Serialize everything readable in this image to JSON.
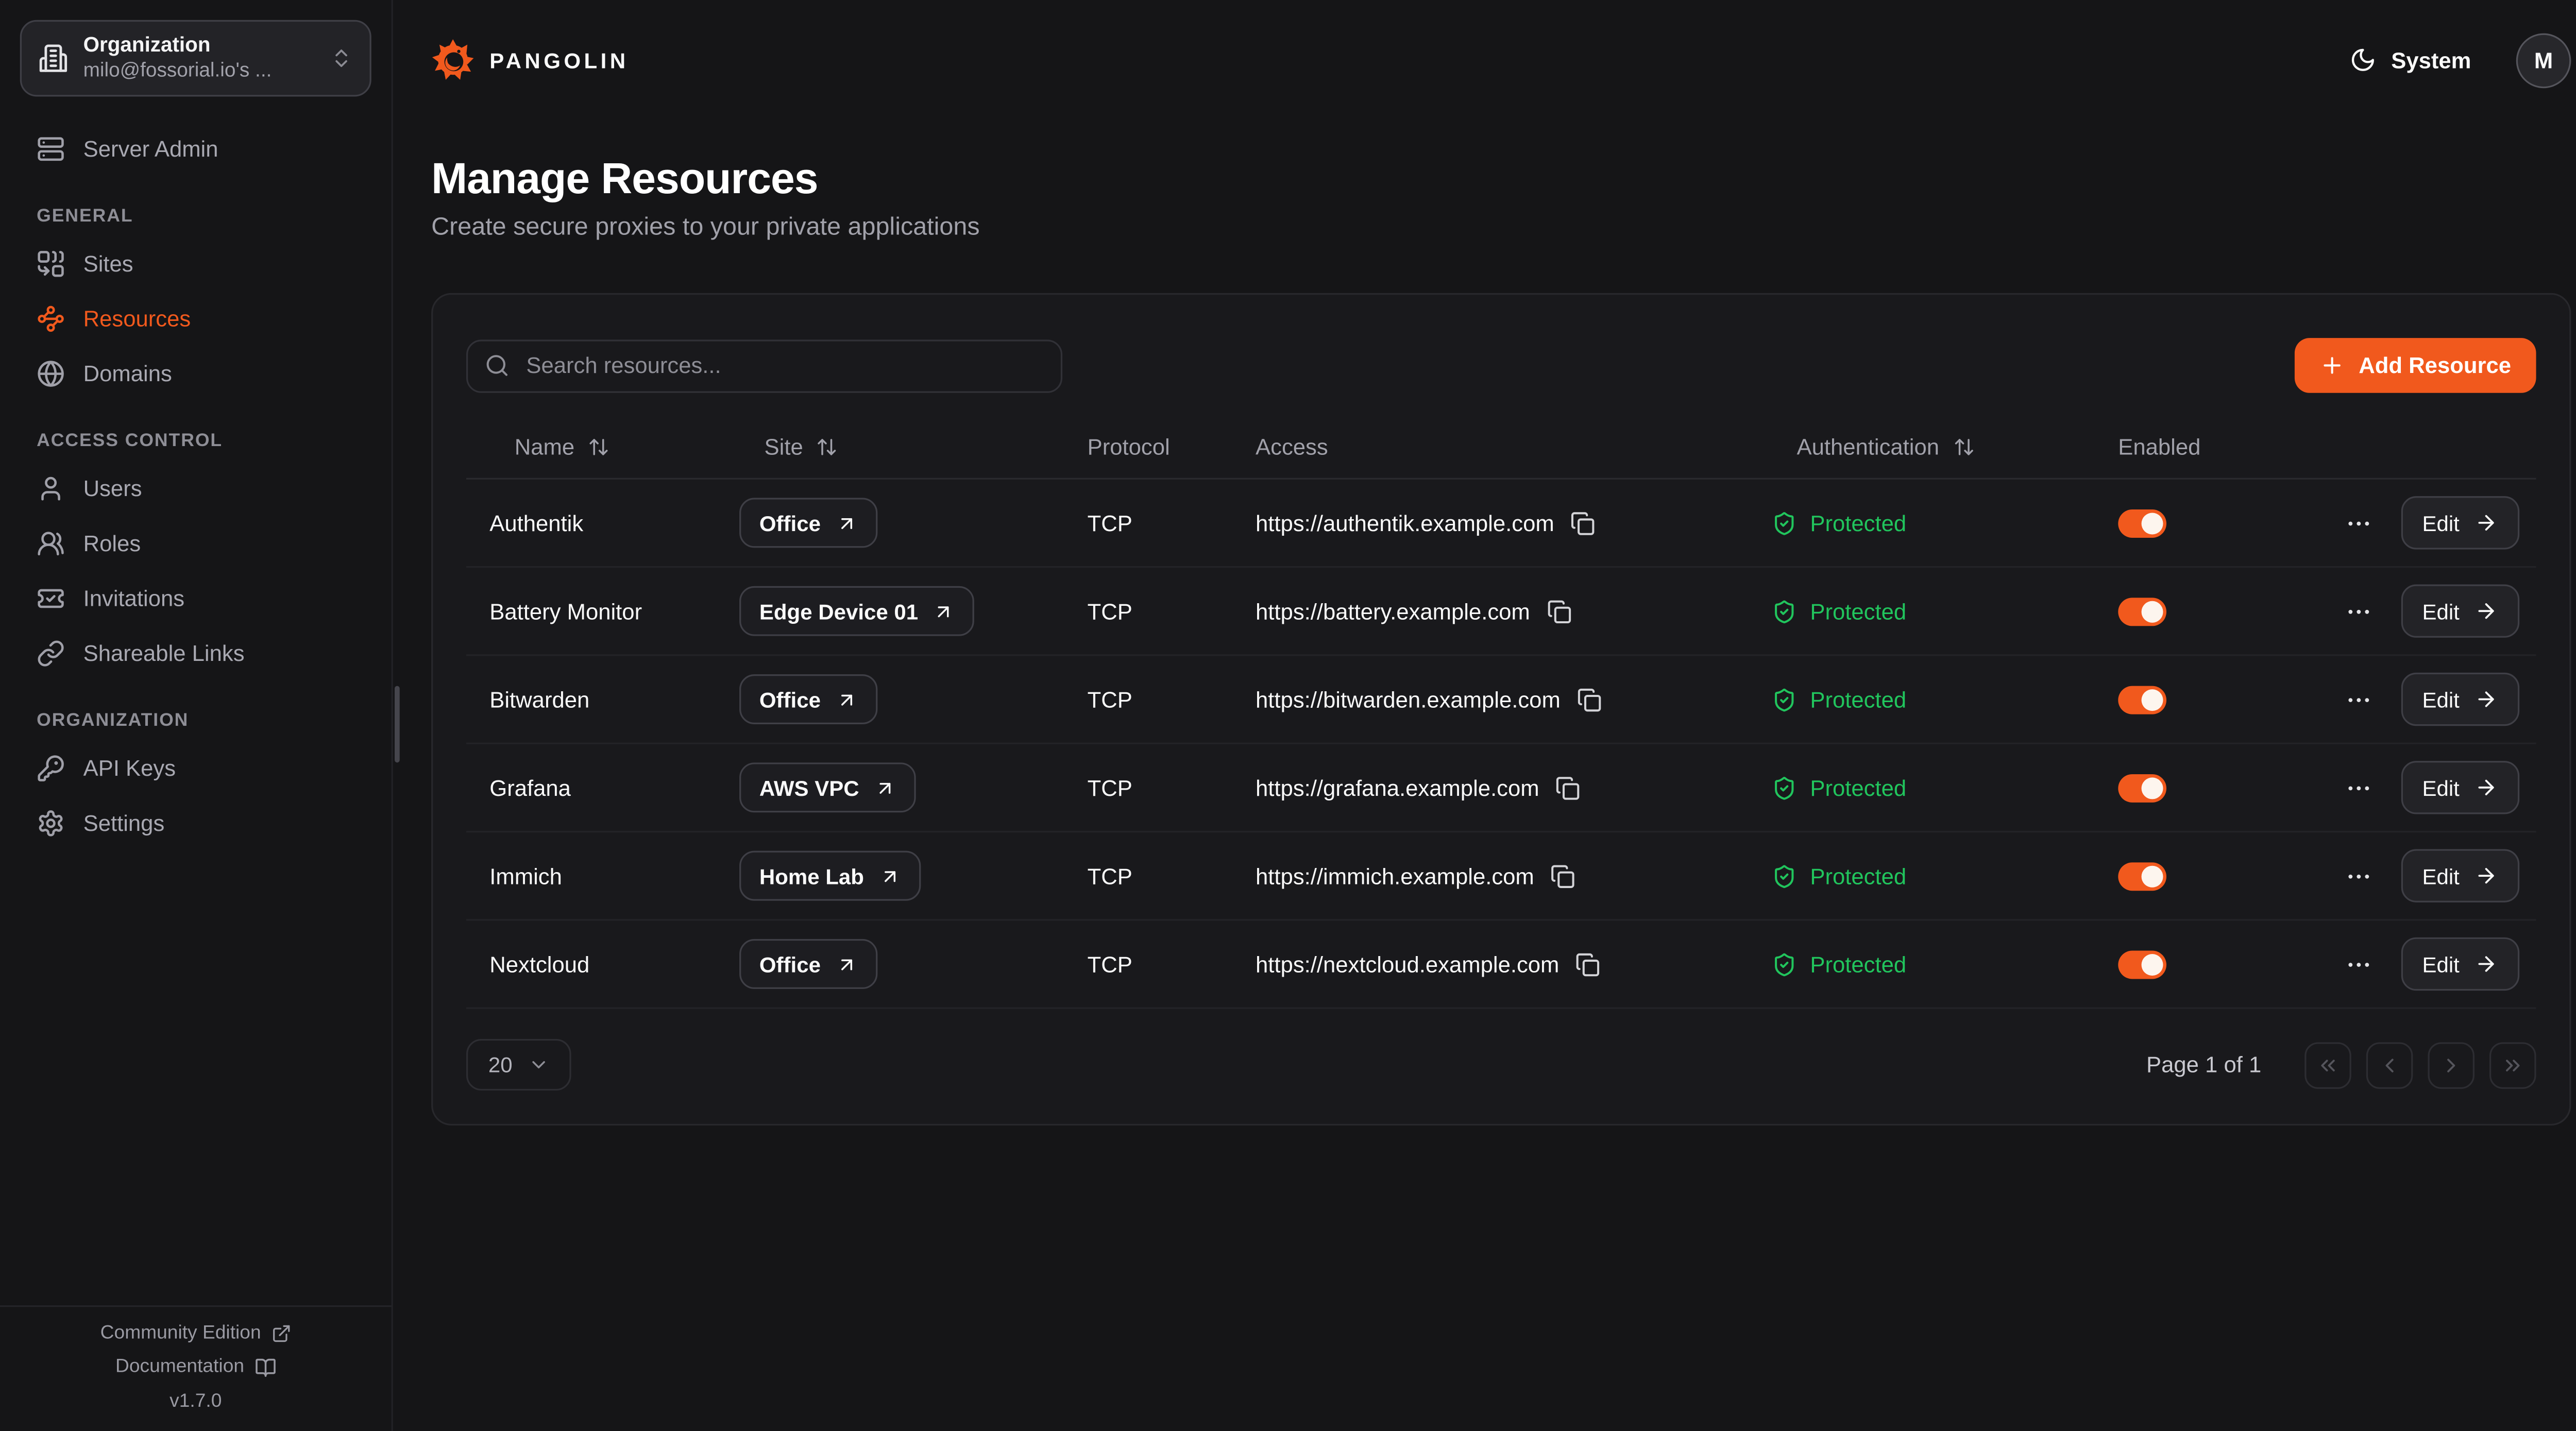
{
  "brand": {
    "name": "PANGOLIN"
  },
  "colors": {
    "accent": "#F1591D",
    "protected_green": "#21C55D"
  },
  "org_selector": {
    "title": "Organization",
    "subtitle": "milo@fossorial.io's ..."
  },
  "sidebar": {
    "top_item": {
      "label": "Server Admin",
      "icon": "server-icon"
    },
    "sections": [
      {
        "label": "GENERAL",
        "items": [
          {
            "label": "Sites",
            "icon": "combine-icon",
            "active": false
          },
          {
            "label": "Resources",
            "icon": "waypoints-icon",
            "active": true
          },
          {
            "label": "Domains",
            "icon": "globe-icon",
            "active": false
          }
        ]
      },
      {
        "label": "ACCESS CONTROL",
        "items": [
          {
            "label": "Users",
            "icon": "user-icon",
            "active": false
          },
          {
            "label": "Roles",
            "icon": "users-icon",
            "active": false
          },
          {
            "label": "Invitations",
            "icon": "ticket-check-icon",
            "active": false
          },
          {
            "label": "Shareable Links",
            "icon": "link-icon",
            "active": false
          }
        ]
      },
      {
        "label": "ORGANIZATION",
        "items": [
          {
            "label": "API Keys",
            "icon": "key-icon",
            "active": false
          },
          {
            "label": "Settings",
            "icon": "gear-icon",
            "active": false
          }
        ]
      }
    ],
    "footer": {
      "community_edition": "Community Edition",
      "documentation": "Documentation",
      "version": "v1.7.0"
    }
  },
  "topbar": {
    "theme_label": "System",
    "avatar_initial": "M"
  },
  "page": {
    "title": "Manage Resources",
    "subtitle": "Create secure proxies to your private applications"
  },
  "toolbar": {
    "search_placeholder": "Search resources...",
    "add_resource_label": "Add Resource"
  },
  "table": {
    "columns": [
      {
        "label": "Name",
        "sortable": true
      },
      {
        "label": "Site",
        "sortable": true
      },
      {
        "label": "Protocol",
        "sortable": false
      },
      {
        "label": "Access",
        "sortable": false
      },
      {
        "label": "Authentication",
        "sortable": true
      },
      {
        "label": "Enabled",
        "sortable": false
      }
    ],
    "edit_label": "Edit",
    "rows": [
      {
        "name": "Authentik",
        "site": "Office",
        "protocol": "TCP",
        "access": "https://authentik.example.com",
        "authentication": "Protected",
        "enabled": true
      },
      {
        "name": "Battery Monitor",
        "site": "Edge Device 01",
        "protocol": "TCP",
        "access": "https://battery.example.com",
        "authentication": "Protected",
        "enabled": true
      },
      {
        "name": "Bitwarden",
        "site": "Office",
        "protocol": "TCP",
        "access": "https://bitwarden.example.com",
        "authentication": "Protected",
        "enabled": true
      },
      {
        "name": "Grafana",
        "site": "AWS VPC",
        "protocol": "TCP",
        "access": "https://grafana.example.com",
        "authentication": "Protected",
        "enabled": true
      },
      {
        "name": "Immich",
        "site": "Home Lab",
        "protocol": "TCP",
        "access": "https://immich.example.com",
        "authentication": "Protected",
        "enabled": true
      },
      {
        "name": "Nextcloud",
        "site": "Office",
        "protocol": "TCP",
        "access": "https://nextcloud.example.com",
        "authentication": "Protected",
        "enabled": true
      }
    ]
  },
  "pagination": {
    "page_size": "20",
    "status": "Page 1 of 1"
  }
}
